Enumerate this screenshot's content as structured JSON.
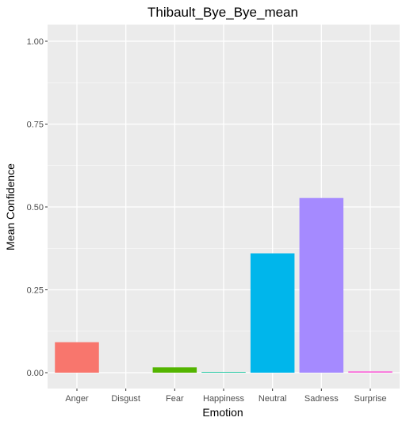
{
  "chart_data": {
    "type": "bar",
    "title": "Thibault_Bye_Bye_mean",
    "xlabel": "Emotion",
    "ylabel": "Mean Confidence",
    "categories": [
      "Anger",
      "Disgust",
      "Fear",
      "Happiness",
      "Neutral",
      "Sadness",
      "Surprise"
    ],
    "values": [
      0.092,
      0.0,
      0.016,
      0.002,
      0.36,
      0.527,
      0.004
    ],
    "colors": [
      "#F8766D",
      "#C49A00",
      "#53B400",
      "#00C094",
      "#00B6EB",
      "#A58AFF",
      "#FB61D7"
    ],
    "ylim": [
      0,
      1
    ],
    "yticks": [
      0.0,
      0.25,
      0.5,
      0.75,
      1.0
    ],
    "ytick_labels": [
      "0.00",
      "0.25",
      "0.50",
      "0.75",
      "1.00"
    ],
    "grid": true,
    "legend": "none",
    "panel_background": "#EBEBEB",
    "grid_color": "#FFFFFF"
  }
}
